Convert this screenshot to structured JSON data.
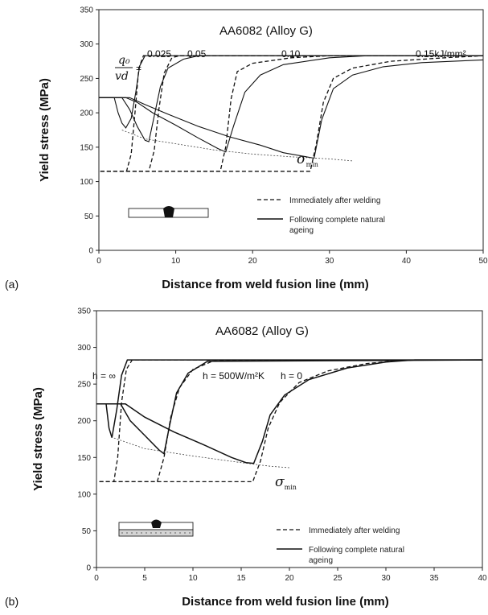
{
  "chart_data": [
    {
      "panel": "(a)",
      "type": "line",
      "title": "AA6082 (Alloy G)",
      "xlabel": "Distance from weld fusion line (mm)",
      "ylabel": "Yield stress (MPa)",
      "xlim": [
        0,
        50
      ],
      "ylim": [
        0,
        350
      ],
      "xticks": [
        0,
        10,
        20,
        30,
        40,
        50
      ],
      "yticks": [
        0,
        50,
        100,
        150,
        200,
        250,
        300,
        350
      ],
      "param_label": {
        "num": "q₀",
        "den": "vd",
        "eq": "="
      },
      "curve_labels": [
        "0.025",
        "0.05",
        "0.10",
        "0.15kJ/mm²"
      ],
      "sigma_label": "σmin",
      "legend": {
        "dashed": "Immediately after welding",
        "solid_1": "Following complete natural",
        "solid_2": "ageing"
      },
      "series": [
        {
          "style": "dashed",
          "points": [
            [
              0.2,
              115
            ],
            [
              3.6,
              115
            ],
            [
              4.2,
              140
            ],
            [
              4.7,
              200
            ],
            [
              5.2,
              265
            ],
            [
              5.8,
              283
            ],
            [
              50,
              283
            ]
          ]
        },
        {
          "style": "dashed",
          "points": [
            [
              0.2,
              115
            ],
            [
              6.5,
              115
            ],
            [
              7.2,
              145
            ],
            [
              7.8,
              205
            ],
            [
              8.5,
              258
            ],
            [
              9.5,
              280
            ],
            [
              10.5,
              283
            ],
            [
              50,
              283
            ]
          ]
        },
        {
          "style": "dashed",
          "points": [
            [
              0.2,
              115
            ],
            [
              15.8,
              115
            ],
            [
              16.5,
              150
            ],
            [
              17.2,
              220
            ],
            [
              18,
              260
            ],
            [
              20,
              272
            ],
            [
              25,
              280
            ],
            [
              30,
              283
            ],
            [
              50,
              283
            ]
          ]
        },
        {
          "style": "dashed",
          "points": [
            [
              0.2,
              115
            ],
            [
              27.5,
              115
            ],
            [
              28.3,
              155
            ],
            [
              29.2,
              215
            ],
            [
              30.5,
              250
            ],
            [
              33,
              265
            ],
            [
              38,
              275
            ],
            [
              45,
              280
            ],
            [
              50,
              283
            ]
          ]
        },
        {
          "style": "solid",
          "points": [
            [
              0,
              222
            ],
            [
              2,
              222
            ],
            [
              2.5,
              200
            ],
            [
              3,
              185
            ],
            [
              3.5,
              178
            ],
            [
              4.2,
              192
            ],
            [
              4.8,
              230
            ],
            [
              5.3,
              268
            ],
            [
              6,
              283
            ],
            [
              50,
              283
            ]
          ]
        },
        {
          "style": "solid",
          "points": [
            [
              0,
              222
            ],
            [
              3,
              222
            ],
            [
              4,
              205
            ],
            [
              5,
              180
            ],
            [
              6,
              160
            ],
            [
              6.5,
              158
            ],
            [
              7.2,
              195
            ],
            [
              8,
              238
            ],
            [
              9,
              265
            ],
            [
              11,
              278
            ],
            [
              13,
              283
            ],
            [
              50,
              283
            ]
          ]
        },
        {
          "style": "solid",
          "points": [
            [
              0,
              222
            ],
            [
              3.5,
              222
            ],
            [
              5,
              215
            ],
            [
              7,
              200
            ],
            [
              10,
              182
            ],
            [
              13,
              163
            ],
            [
              15.5,
              148
            ],
            [
              16.5,
              143
            ],
            [
              17.5,
              180
            ],
            [
              19,
              230
            ],
            [
              21,
              255
            ],
            [
              24,
              270
            ],
            [
              30,
              280
            ],
            [
              35,
              283
            ],
            [
              50,
              283
            ]
          ]
        },
        {
          "style": "solid",
          "points": [
            [
              0,
              222
            ],
            [
              4,
              222
            ],
            [
              6,
              212
            ],
            [
              9,
              198
            ],
            [
              13,
              180
            ],
            [
              17,
              165
            ],
            [
              21,
              153
            ],
            [
              24,
              142
            ],
            [
              28,
              134
            ],
            [
              29,
              190
            ],
            [
              30.5,
              235
            ],
            [
              33,
              255
            ],
            [
              37,
              267
            ],
            [
              42,
              273
            ],
            [
              50,
              277
            ]
          ]
        },
        {
          "style": "dotted",
          "points": [
            [
              3,
              175
            ],
            [
              6,
              162
            ],
            [
              10,
              155
            ],
            [
              15,
              146
            ],
            [
              20,
              140
            ],
            [
              25,
              136
            ],
            [
              30,
              133
            ],
            [
              33,
              130
            ]
          ]
        }
      ]
    },
    {
      "panel": "(b)",
      "type": "line",
      "title": "AA6082 (Alloy G)",
      "xlabel": "Distance from weld fusion line (mm)",
      "ylabel": "Yield stress (MPa)",
      "xlim": [
        0,
        40
      ],
      "ylim": [
        0,
        350
      ],
      "xticks": [
        0,
        5,
        10,
        15,
        20,
        25,
        30,
        35,
        40
      ],
      "yticks": [
        0,
        50,
        100,
        150,
        200,
        250,
        300,
        350
      ],
      "curve_labels": [
        "h = ∞",
        "h = 500W/m²K",
        "h = 0"
      ],
      "sigma_label": "σmin",
      "legend": {
        "dashed": "Immediately after welding",
        "solid_1": "Following complete natural",
        "solid_2": "ageing"
      },
      "series": [
        {
          "style": "dashed",
          "points": [
            [
              0.3,
              117
            ],
            [
              1.8,
              117
            ],
            [
              2.2,
              150
            ],
            [
              2.6,
              225
            ],
            [
              3.1,
              270
            ],
            [
              3.7,
              283
            ],
            [
              40,
              283
            ]
          ]
        },
        {
          "style": "dashed",
          "points": [
            [
              0.3,
              117
            ],
            [
              6.3,
              117
            ],
            [
              7,
              150
            ],
            [
              7.7,
              205
            ],
            [
              8.6,
              245
            ],
            [
              10,
              270
            ],
            [
              12,
              281
            ],
            [
              14,
              283
            ],
            [
              40,
              283
            ]
          ]
        },
        {
          "style": "dashed",
          "points": [
            [
              0.3,
              117
            ],
            [
              16.2,
              117
            ],
            [
              17,
              145
            ],
            [
              17.8,
              190
            ],
            [
              19,
              225
            ],
            [
              21,
              252
            ],
            [
              24,
              268
            ],
            [
              28,
              278
            ],
            [
              32,
              283
            ],
            [
              40,
              283
            ]
          ]
        },
        {
          "style": "solid",
          "points": [
            [
              0,
              223
            ],
            [
              1,
              223
            ],
            [
              1.3,
              190
            ],
            [
              1.6,
              177
            ],
            [
              2.1,
              215
            ],
            [
              2.6,
              262
            ],
            [
              3.2,
              283
            ],
            [
              40,
              283
            ]
          ]
        },
        {
          "style": "solid",
          "points": [
            [
              0,
              223
            ],
            [
              2.5,
              223
            ],
            [
              3.5,
              200
            ],
            [
              5,
              180
            ],
            [
              6.5,
              160
            ],
            [
              7,
              155
            ],
            [
              7.6,
              195
            ],
            [
              8.3,
              238
            ],
            [
              9.5,
              265
            ],
            [
              11.5,
              281
            ],
            [
              40,
              283
            ]
          ]
        },
        {
          "style": "solid",
          "points": [
            [
              0,
              223
            ],
            [
              3,
              223
            ],
            [
              5,
              205
            ],
            [
              8,
              185
            ],
            [
              11,
              168
            ],
            [
              14,
              150
            ],
            [
              15.5,
              143
            ],
            [
              16.3,
              142
            ],
            [
              17.2,
              172
            ],
            [
              18,
              208
            ],
            [
              19.5,
              235
            ],
            [
              22,
              256
            ],
            [
              26,
              272
            ],
            [
              30,
              280
            ],
            [
              33,
              283
            ],
            [
              40,
              283
            ]
          ]
        },
        {
          "style": "dotted",
          "points": [
            [
              1.5,
              178
            ],
            [
              5,
              162
            ],
            [
              10,
              152
            ],
            [
              15,
              143
            ],
            [
              18,
              138
            ],
            [
              20,
              136
            ]
          ]
        }
      ]
    }
  ]
}
